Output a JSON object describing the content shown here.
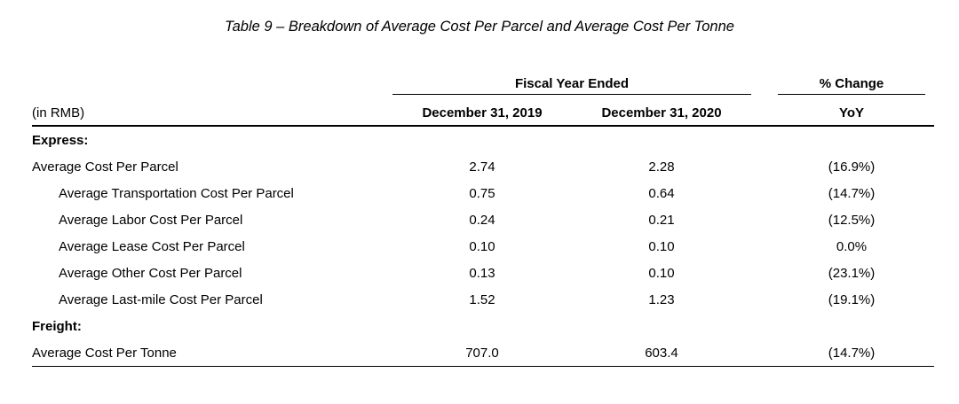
{
  "caption": "Table 9 – Breakdown of Average Cost Per Parcel and Average Cost Per Tonne",
  "header": {
    "group_fiscal": "Fiscal Year Ended",
    "group_change": "% Change",
    "unit_label": "(in RMB)",
    "col_2019": "December 31, 2019",
    "col_2020": "December 31, 2020",
    "col_change": "YoY"
  },
  "sections": {
    "express": {
      "label": "Express:",
      "rows": [
        {
          "label": "Average Cost Per Parcel",
          "y2019": "2.74",
          "y2020": "2.28",
          "change": "(16.9%)"
        },
        {
          "label": "Average Transportation Cost Per Parcel",
          "y2019": "0.75",
          "y2020": "0.64",
          "change": "(14.7%)"
        },
        {
          "label": "Average Labor Cost Per Parcel",
          "y2019": "0.24",
          "y2020": "0.21",
          "change": "(12.5%)"
        },
        {
          "label": "Average Lease Cost Per Parcel",
          "y2019": "0.10",
          "y2020": "0.10",
          "change": "0.0%"
        },
        {
          "label": "Average Other Cost Per Parcel",
          "y2019": "0.13",
          "y2020": "0.10",
          "change": "(23.1%)"
        },
        {
          "label": "Average Last-mile Cost Per Parcel",
          "y2019": "1.52",
          "y2020": "1.23",
          "change": "(19.1%)"
        }
      ]
    },
    "freight": {
      "label": "Freight:",
      "rows": [
        {
          "label": "Average Cost Per Tonne",
          "y2019": "707.0",
          "y2020": "603.4",
          "change": "(14.7%)"
        }
      ]
    }
  }
}
